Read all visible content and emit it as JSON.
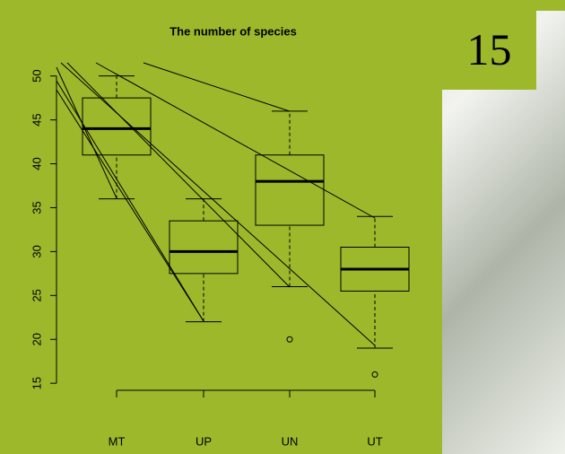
{
  "page_number": "15",
  "chart_data": {
    "type": "box",
    "title": "The number of species",
    "categories": [
      "MT",
      "UP",
      "UN",
      "UT"
    ],
    "whislo": [
      36,
      22,
      26,
      19
    ],
    "q1": [
      41,
      27.5,
      33,
      25.5
    ],
    "med": [
      44,
      30,
      38,
      28
    ],
    "q3": [
      47.5,
      33.5,
      41,
      30.5
    ],
    "whishi": [
      50,
      36,
      46,
      34
    ],
    "fliers": [
      [],
      [],
      [
        20
      ],
      [
        16
      ]
    ],
    "ylim": [
      14.2,
      51.5
    ],
    "yticks": [
      15,
      20,
      25,
      30,
      35,
      40,
      45,
      50
    ],
    "color": "#9db82b"
  }
}
